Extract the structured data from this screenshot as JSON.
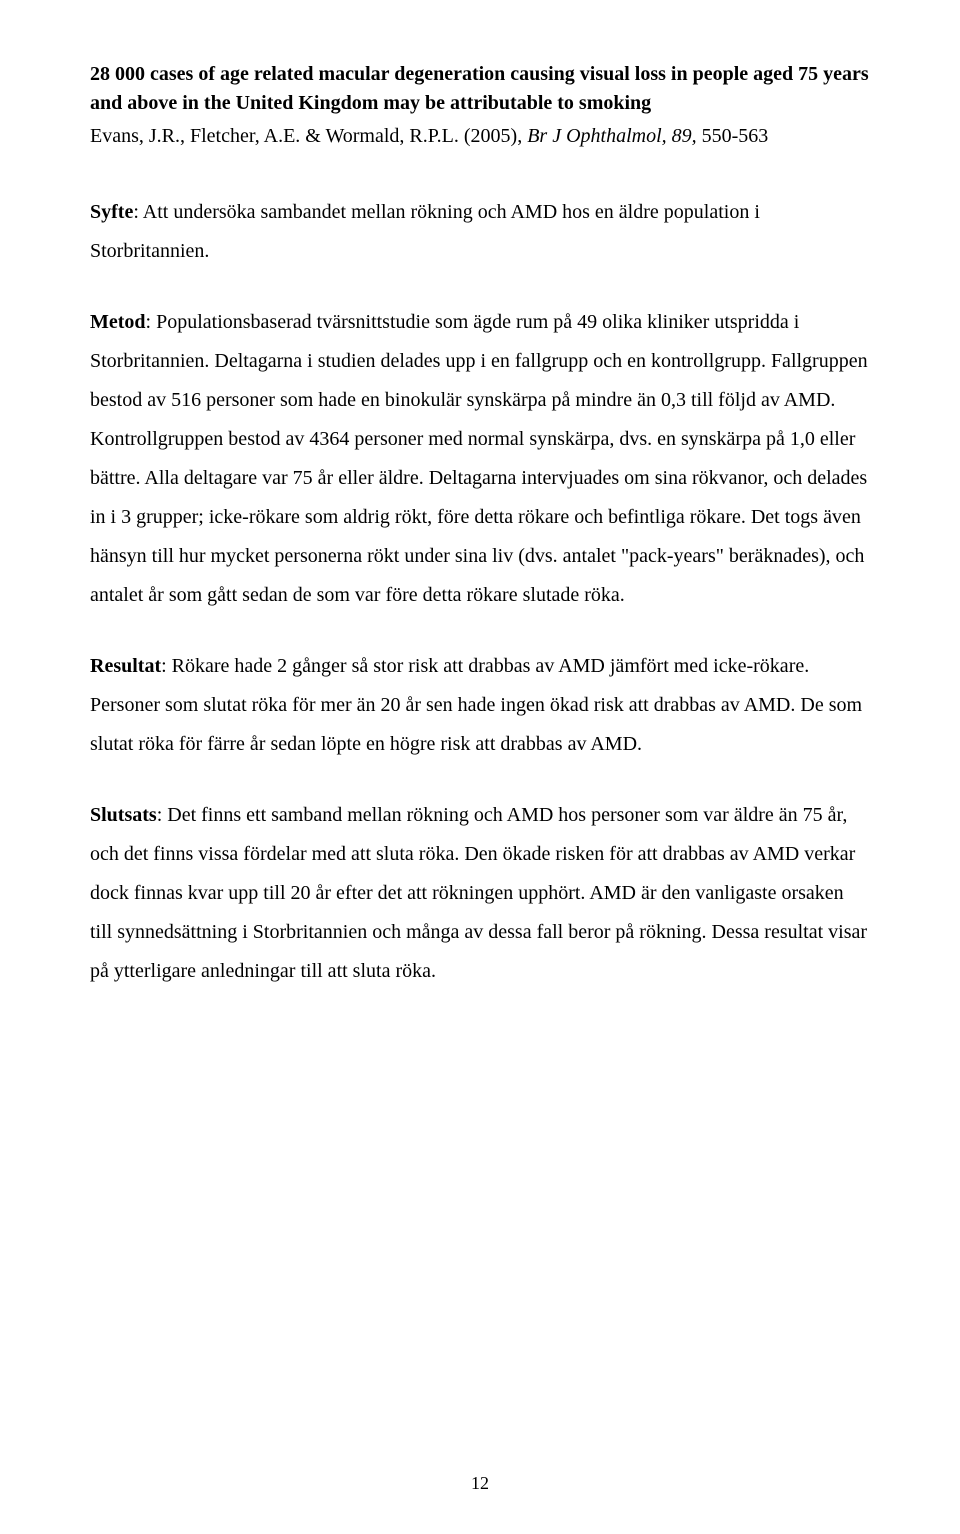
{
  "title": "28 000 cases of age related macular degeneration causing visual loss in people aged 75 years and above in the United Kingdom may be attributable to smoking",
  "citation_authors": "Evans, J.R., Fletcher, A.E. & Wormald, R.P.L. (2005), ",
  "citation_journal": "Br J Ophthalmol, 89, ",
  "citation_pages": "550-563",
  "syfte_label": "Syfte",
  "syfte_text": ": Att undersöka sambandet mellan rökning och AMD hos en äldre population i Storbritannien.",
  "metod_label": "Metod",
  "metod_text": ": Populationsbaserad tvärsnittstudie som ägde rum på 49 olika kliniker utspridda i Storbritannien. Deltagarna i studien delades upp i en fallgrupp och en kontrollgrupp. Fallgruppen bestod av 516 personer som hade en binokulär synskärpa på mindre än 0,3 till följd av AMD. Kontrollgruppen bestod av 4364 personer med normal synskärpa, dvs. en synskärpa på 1,0 eller bättre. Alla deltagare var 75 år eller äldre. Deltagarna intervjuades om sina rökvanor, och delades in i 3 grupper; icke-rökare som aldrig rökt, före detta rökare och befintliga rökare. Det togs även hänsyn till hur mycket personerna rökt under sina liv (dvs. antalet \"pack-years\" beräknades), och antalet år som gått sedan de som var före detta rökare slutade röka.",
  "resultat_label": "Resultat",
  "resultat_text": ": Rökare hade 2 gånger så stor risk att drabbas av AMD jämfört med icke-rökare. Personer som slutat röka för mer än 20 år sen hade ingen ökad risk att drabbas av AMD. De som slutat röka för färre år sedan löpte en högre risk att drabbas av AMD.",
  "slutsats_label": "Slutsats",
  "slutsats_text": ": Det finns ett samband mellan rökning och AMD hos personer som var äldre än 75 år, och det finns vissa fördelar med att sluta röka. Den ökade risken för att drabbas av AMD verkar dock finnas kvar upp till 20 år efter det att rökningen upphört. AMD är den vanligaste orsaken till synnedsättning i Storbritannien och många av dessa fall beror på rökning. Dessa resultat visar på ytterligare anledningar till att sluta röka.",
  "page_number": "12"
}
